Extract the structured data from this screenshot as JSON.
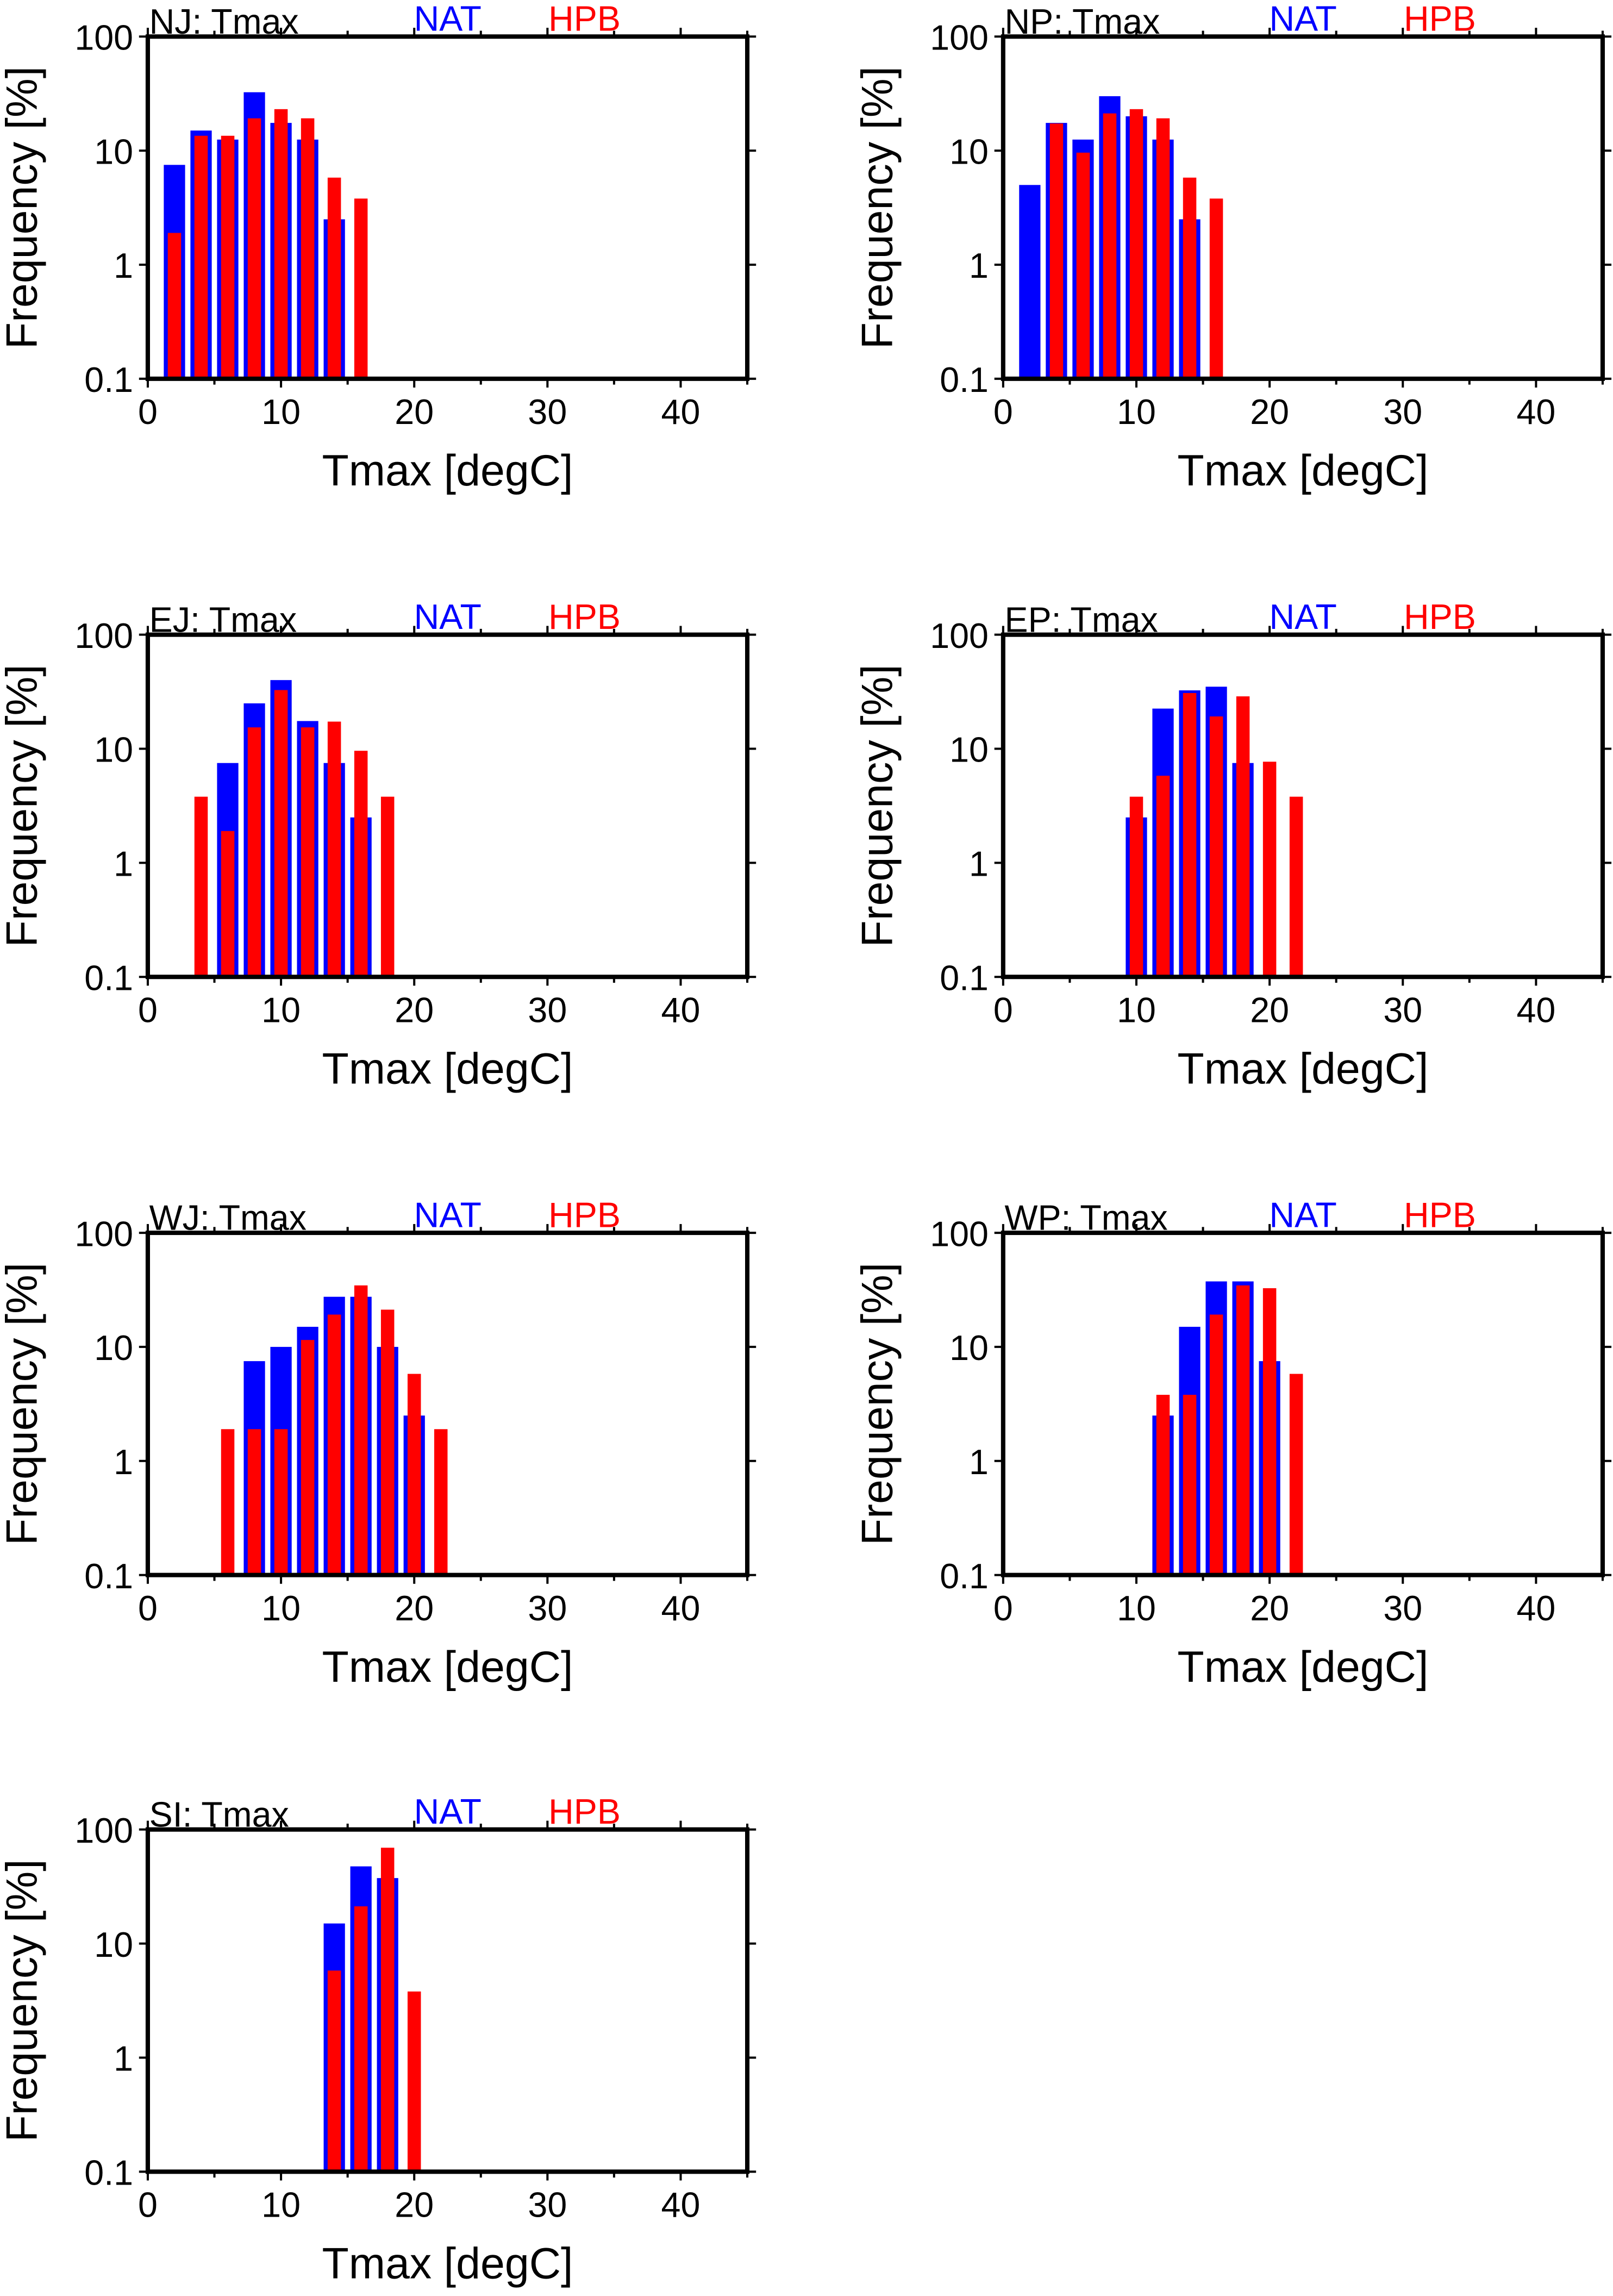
{
  "axis_common": {
    "xlabel": "Tmax [degC]",
    "ylabel": "Frequency [%]",
    "xlim": [
      0,
      45
    ],
    "ylim": [
      0.1,
      100
    ],
    "yscale": "log",
    "xtick_labels": [
      "0",
      "10",
      "20",
      "30",
      "40"
    ],
    "ytick_labels": [
      "0.1",
      "1",
      "10",
      "100"
    ]
  },
  "chart_data": [
    {
      "type": "bar",
      "title": "NJ: Tmax",
      "xlabel": "Tmax [degC]",
      "ylabel": "Frequency [%]",
      "xlim": [
        0,
        45
      ],
      "ylim": [
        0.1,
        100
      ],
      "yscale": "log",
      "series": [
        {
          "name": "NAT",
          "color": "#0000ff",
          "x": [
            2,
            4,
            6,
            8,
            10,
            12,
            14
          ],
          "values": [
            7.5,
            15,
            12.5,
            32.5,
            17.5,
            12.5,
            2.5
          ]
        },
        {
          "name": "HPB",
          "color": "#ff0000",
          "x": [
            2,
            4,
            6,
            8,
            10,
            12,
            14,
            16
          ],
          "values": [
            1.9,
            13.5,
            13.5,
            19.2,
            23.1,
            19.2,
            5.8,
            3.8
          ]
        }
      ]
    },
    {
      "type": "bar",
      "title": "NP: Tmax",
      "xlabel": "Tmax [degC]",
      "ylabel": "Frequency [%]",
      "xlim": [
        0,
        45
      ],
      "ylim": [
        0.1,
        100
      ],
      "yscale": "log",
      "series": [
        {
          "name": "NAT",
          "color": "#0000ff",
          "x": [
            2,
            4,
            6,
            8,
            10,
            12,
            14
          ],
          "values": [
            5,
            17.5,
            12.5,
            30,
            20,
            12.5,
            2.5
          ]
        },
        {
          "name": "HPB",
          "color": "#ff0000",
          "x": [
            4,
            6,
            8,
            10,
            12,
            14,
            16
          ],
          "values": [
            17.3,
            9.6,
            21.2,
            23.1,
            19.2,
            5.8,
            3.8
          ]
        }
      ]
    },
    {
      "type": "bar",
      "title": "EJ: Tmax",
      "xlabel": "Tmax [degC]",
      "ylabel": "Frequency [%]",
      "xlim": [
        0,
        45
      ],
      "ylim": [
        0.1,
        100
      ],
      "yscale": "log",
      "series": [
        {
          "name": "NAT",
          "color": "#0000ff",
          "x": [
            6,
            8,
            10,
            12,
            14,
            16
          ],
          "values": [
            7.5,
            25,
            40,
            17.5,
            7.5,
            2.5
          ]
        },
        {
          "name": "HPB",
          "color": "#ff0000",
          "x": [
            4,
            6,
            8,
            10,
            12,
            14,
            16,
            18
          ],
          "values": [
            3.8,
            1.9,
            15.4,
            32.7,
            15.4,
            17.3,
            9.6,
            3.8
          ]
        }
      ]
    },
    {
      "type": "bar",
      "title": "EP: Tmax",
      "xlabel": "Tmax [degC]",
      "ylabel": "Frequency [%]",
      "xlim": [
        0,
        45
      ],
      "ylim": [
        0.1,
        100
      ],
      "yscale": "log",
      "series": [
        {
          "name": "NAT",
          "color": "#0000ff",
          "x": [
            10,
            12,
            14,
            16,
            18
          ],
          "values": [
            2.5,
            22.5,
            32.5,
            35,
            7.5
          ]
        },
        {
          "name": "HPB",
          "color": "#ff0000",
          "x": [
            10,
            12,
            14,
            16,
            18,
            20,
            22
          ],
          "values": [
            3.8,
            5.8,
            30.8,
            19.2,
            28.8,
            7.7,
            3.8
          ]
        }
      ]
    },
    {
      "type": "bar",
      "title": "WJ: Tmax",
      "xlabel": "Tmax [degC]",
      "ylabel": "Frequency [%]",
      "xlim": [
        0,
        45
      ],
      "ylim": [
        0.1,
        100
      ],
      "yscale": "log",
      "series": [
        {
          "name": "NAT",
          "color": "#0000ff",
          "x": [
            8,
            10,
            12,
            14,
            16,
            18,
            20
          ],
          "values": [
            7.5,
            10,
            15,
            27.5,
            27.5,
            10,
            2.5
          ]
        },
        {
          "name": "HPB",
          "color": "#ff0000",
          "x": [
            6,
            8,
            10,
            12,
            14,
            16,
            18,
            20,
            22
          ],
          "values": [
            1.9,
            1.9,
            1.9,
            11.5,
            19.2,
            34.6,
            21.2,
            5.8,
            1.9
          ]
        }
      ]
    },
    {
      "type": "bar",
      "title": "WP: Tmax",
      "xlabel": "Tmax [degC]",
      "ylabel": "Frequency [%]",
      "xlim": [
        0,
        45
      ],
      "ylim": [
        0.1,
        100
      ],
      "yscale": "log",
      "series": [
        {
          "name": "NAT",
          "color": "#0000ff",
          "x": [
            12,
            14,
            16,
            18,
            20
          ],
          "values": [
            2.5,
            15,
            37.5,
            37.5,
            7.5
          ]
        },
        {
          "name": "HPB",
          "color": "#ff0000",
          "x": [
            12,
            14,
            16,
            18,
            20,
            22
          ],
          "values": [
            3.8,
            3.8,
            19.2,
            34.6,
            32.7,
            5.8
          ]
        }
      ]
    },
    {
      "type": "bar",
      "title": "SI: Tmax",
      "xlabel": "Tmax [degC]",
      "ylabel": "Frequency [%]",
      "xlim": [
        0,
        45
      ],
      "ylim": [
        0.1,
        100
      ],
      "yscale": "log",
      "series": [
        {
          "name": "NAT",
          "color": "#0000ff",
          "x": [
            14,
            16,
            18
          ],
          "values": [
            15,
            47.5,
            37.5
          ]
        },
        {
          "name": "HPB",
          "color": "#ff0000",
          "x": [
            14,
            16,
            18,
            20
          ],
          "values": [
            5.8,
            21.2,
            69.2,
            3.8
          ]
        }
      ]
    }
  ]
}
